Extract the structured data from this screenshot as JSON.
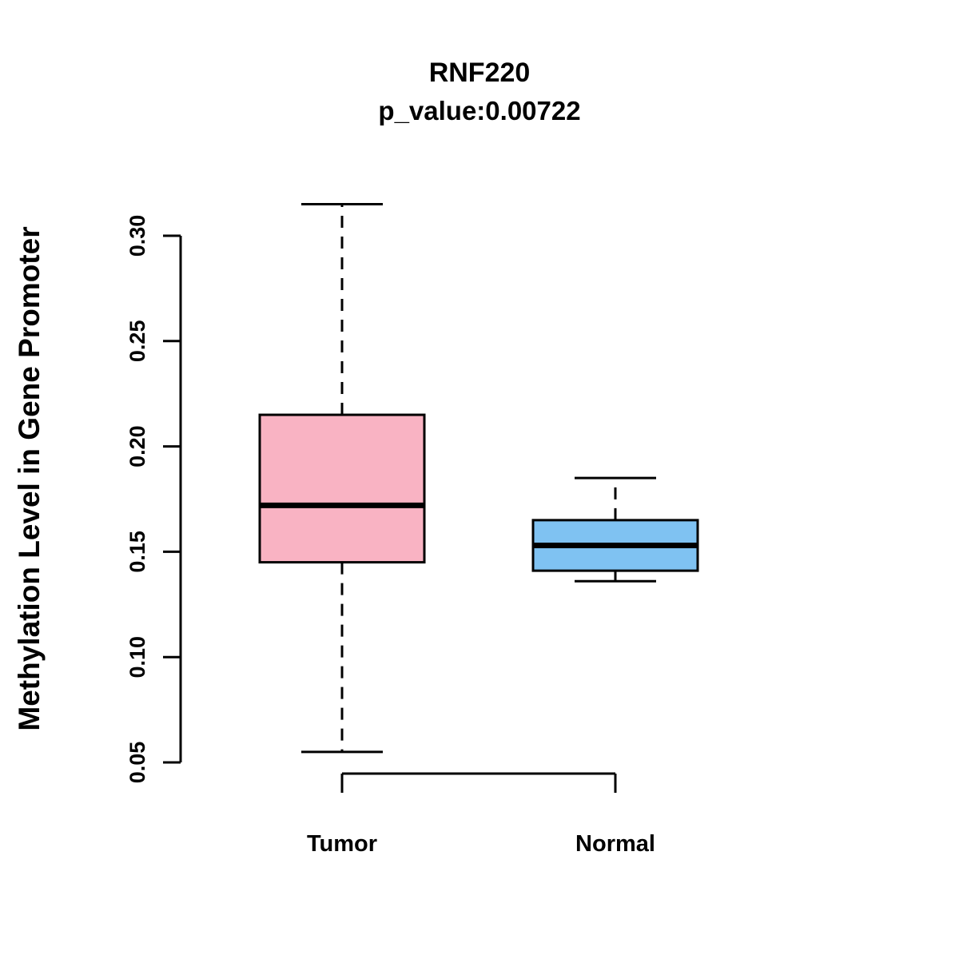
{
  "chart_data": {
    "type": "boxplot",
    "title": "RNF220",
    "subtitle": "p_value:0.00722",
    "ylabel": "Methylation Level in Gene Promoter",
    "xlabel": "",
    "ylim": [
      0.05,
      0.315
    ],
    "grid": false,
    "legend": "none",
    "yticks": [
      {
        "value": 0.05,
        "label": "0.05"
      },
      {
        "value": 0.1,
        "label": "0.10"
      },
      {
        "value": 0.15,
        "label": "0.15"
      },
      {
        "value": 0.2,
        "label": "0.20"
      },
      {
        "value": 0.25,
        "label": "0.25"
      },
      {
        "value": 0.3,
        "label": "0.30"
      }
    ],
    "groups": [
      {
        "label": "Tumor",
        "color": "#F9B3C3",
        "stats": {
          "whisker_low": 0.055,
          "q1": 0.145,
          "median": 0.172,
          "q3": 0.215,
          "whisker_high": 0.315
        }
      },
      {
        "label": "Normal",
        "color": "#7FC2F2",
        "stats": {
          "whisker_low": 0.136,
          "q1": 0.141,
          "median": 0.153,
          "q3": 0.165,
          "whisker_high": 0.185
        }
      }
    ]
  }
}
